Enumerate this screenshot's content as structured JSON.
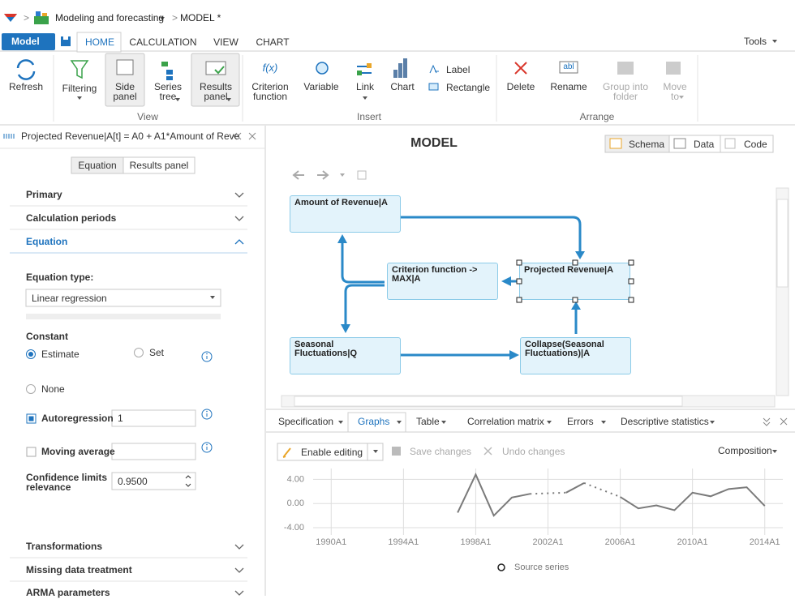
{
  "breadcrumb": {
    "separator": ">",
    "app": "Modeling and forecasting",
    "model": "MODEL *"
  },
  "menu": {
    "model_button": "Model",
    "tabs": [
      "HOME",
      "CALCULATION",
      "VIEW",
      "CHART"
    ],
    "tools": "Tools"
  },
  "ribbon": {
    "refresh": "Refresh",
    "view": {
      "label": "View",
      "buttons": [
        "Filtering",
        "Side panel",
        "Series tree",
        "Results panel"
      ]
    },
    "insert": {
      "label": "Insert",
      "criterion_icon": "f(x)",
      "buttons": [
        "Criterion function",
        "Variable",
        "Link",
        "Chart"
      ],
      "label_tool": "Label",
      "rectangle_tool": "Rectangle"
    },
    "arrange": {
      "label": "Arrange",
      "rename_icon": "abl",
      "buttons": [
        "Delete",
        "Rename",
        "Group into folder",
        "Move to"
      ]
    }
  },
  "side_panel": {
    "title": "Projected Revenue|A[t] = A0 + A1*Amount of Reve",
    "tabs": [
      "Equation",
      "Results panel"
    ],
    "sections": [
      "Primary",
      "Calculation periods",
      "Equation"
    ],
    "equation": {
      "type_label": "Equation type:",
      "type_value": "Linear regression",
      "constant_label": "Constant",
      "constant_options": [
        "Estimate",
        "Set",
        "None"
      ],
      "autoregression": {
        "label": "Autoregression",
        "value": "1"
      },
      "moving_average": {
        "label": "Moving average"
      },
      "confidence": {
        "label": "Confidence limits relevance",
        "value": "0.9500"
      }
    },
    "more_sections": [
      "Transformations",
      "Missing data treatment",
      "ARMA parameters"
    ]
  },
  "workspace": {
    "title": "MODEL",
    "views": [
      "Schema",
      "Data",
      "Code"
    ],
    "diagram": {
      "nodes": [
        {
          "label": "Amount of Revenue|A"
        },
        {
          "label": "Criterion function -> MAX|A"
        },
        {
          "label": "Projected Revenue|A"
        },
        {
          "label": "Seasonal Fluctuations|Q"
        },
        {
          "label": "Collapse(Seasonal Fluctuations)|A"
        }
      ]
    }
  },
  "results_panel": {
    "tabs": [
      "Specification",
      "Graphs",
      "Table",
      "Correlation matrix",
      "Errors",
      "Descriptive statistics"
    ],
    "toolbar": {
      "enable_editing": "Enable editing",
      "save_changes": "Save changes",
      "undo_changes": "Undo changes",
      "composition": "Composition"
    },
    "chart": {
      "type": "line",
      "x": [
        1997,
        1998,
        1999,
        2000,
        2001,
        2002,
        2003,
        2004,
        2005,
        2006,
        2007,
        2008,
        2009,
        2010,
        2011,
        2012,
        2013,
        2014
      ],
      "series": [
        {
          "name": "Source series",
          "color": "#7a7a7a",
          "values": [
            -1.5,
            4.8,
            -2,
            1,
            1.6,
            null,
            1.8,
            3.4,
            null,
            1.1,
            -0.8,
            -0.3,
            -1.1,
            1.8,
            1.2,
            2.4,
            2.7,
            -0.4
          ]
        }
      ],
      "xlim": [
        1989,
        2015
      ],
      "ylim": [
        -5.2,
        5.8
      ],
      "xticks": [
        {
          "value": 1990,
          "label": "1990A1"
        },
        {
          "value": 1994,
          "label": "1994A1"
        },
        {
          "value": 1998,
          "label": "1998A1"
        },
        {
          "value": 2002,
          "label": "2002A1"
        },
        {
          "value": 2006,
          "label": "2006A1"
        },
        {
          "value": 2010,
          "label": "2010A1"
        },
        {
          "value": 2014,
          "label": "2014A1"
        }
      ],
      "yticks": [
        {
          "value": 4,
          "label": "4.00"
        },
        {
          "value": 0,
          "label": "0.00"
        },
        {
          "value": -4,
          "label": "-4.00"
        }
      ],
      "grid": true
    }
  }
}
